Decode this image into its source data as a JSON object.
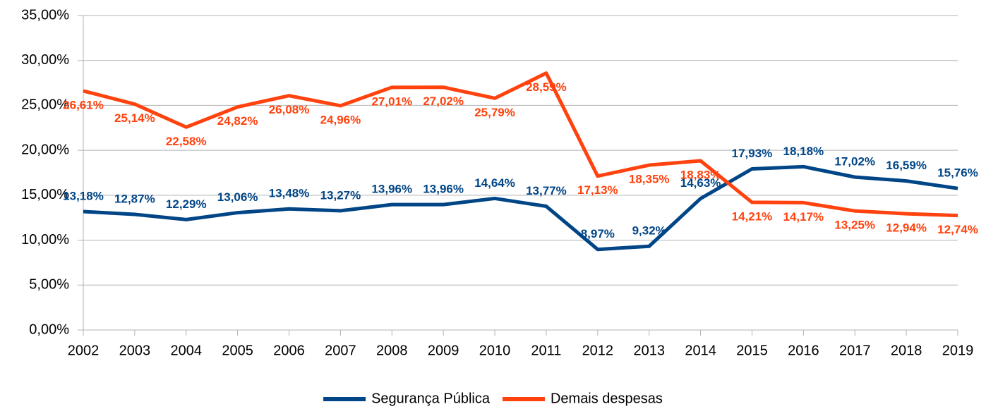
{
  "chart_data": {
    "type": "line",
    "categories": [
      "2002",
      "2003",
      "2004",
      "2005",
      "2006",
      "2007",
      "2008",
      "2009",
      "2010",
      "2011",
      "2012",
      "2013",
      "2014",
      "2015",
      "2016",
      "2017",
      "2018",
      "2019"
    ],
    "series": [
      {
        "name": "Segurança Pública",
        "color": "#004586",
        "values": [
          13.18,
          12.87,
          12.29,
          13.06,
          13.48,
          13.27,
          13.96,
          13.96,
          14.64,
          13.77,
          8.97,
          9.32,
          14.63,
          17.93,
          18.18,
          17.02,
          16.59,
          15.76
        ],
        "value_labels": [
          "13,18%",
          "12,87%",
          "12,29%",
          "13,06%",
          "13,48%",
          "13,27%",
          "13,96%",
          "13,96%",
          "14,64%",
          "13,77%",
          "8,97%",
          "9,32%",
          "14,63%",
          "17,93%",
          "18,18%",
          "17,02%",
          "16,59%",
          "15,76%"
        ]
      },
      {
        "name": "Demais despesas",
        "color": "#ff420e",
        "values": [
          26.61,
          25.14,
          22.58,
          24.82,
          26.08,
          24.96,
          27.01,
          27.02,
          25.79,
          28.59,
          17.13,
          18.35,
          18.83,
          14.21,
          14.17,
          13.25,
          12.94,
          12.74
        ],
        "value_labels": [
          "26,61%",
          "25,14%",
          "22,58%",
          "24,82%",
          "26,08%",
          "24,96%",
          "27,01%",
          "27,02%",
          "25,79%",
          "28,59%",
          "17,13%",
          "18,35%",
          "18,83%",
          "14,21%",
          "14,17%",
          "13,25%",
          "12,94%",
          "12,74%"
        ]
      }
    ],
    "ylim": [
      0,
      35
    ],
    "yticks": [
      {
        "value": 0,
        "label": "0,00%"
      },
      {
        "value": 5,
        "label": "5,00%"
      },
      {
        "value": 10,
        "label": "10,00%"
      },
      {
        "value": 15,
        "label": "15,00%"
      },
      {
        "value": 20,
        "label": "20,00%"
      },
      {
        "value": 25,
        "label": "25,00%"
      },
      {
        "value": 30,
        "label": "30,00%"
      },
      {
        "value": 35,
        "label": "35,00%"
      }
    ],
    "grid": true,
    "legend": "bottom"
  }
}
